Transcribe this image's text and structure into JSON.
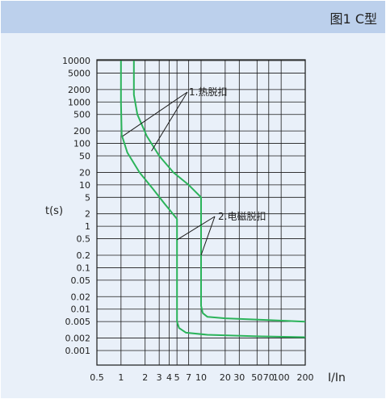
{
  "header": {
    "title": "图1 C型"
  },
  "chart_data": {
    "type": "line",
    "title": "图1 C型",
    "xlabel": "I/In",
    "ylabel": "t(s)",
    "x_scale": "log",
    "y_scale": "log",
    "xlim": [
      0.5,
      200
    ],
    "ylim": [
      0.0005,
      10000
    ],
    "grid": true,
    "x_ticks": [
      0.5,
      1,
      2,
      3,
      4,
      5,
      7,
      10,
      20,
      30,
      50,
      70,
      100,
      200
    ],
    "x_tick_labels": [
      "0.5",
      "1",
      "2",
      "3",
      "4",
      "5",
      "7",
      "10",
      "20",
      "30",
      "50",
      "70",
      "100",
      "200"
    ],
    "y_ticks": [
      0.001,
      0.002,
      0.005,
      0.01,
      0.02,
      0.05,
      0.1,
      0.2,
      0.5,
      1,
      2,
      5,
      10,
      20,
      50,
      100,
      200,
      500,
      1000,
      2000,
      5000,
      10000
    ],
    "y_tick_labels": [
      "0.001",
      "0.002",
      "0.005",
      "0.01",
      "0.02",
      "0.05",
      "0.1",
      "0.2",
      "0.5",
      "1",
      "2",
      "5",
      "10",
      "20",
      "50",
      "100",
      "200",
      "500",
      "1000",
      "2000",
      "5000",
      "10000"
    ],
    "line_color": "#2bb35a",
    "series": [
      {
        "values": [
          [
            1,
            10000
          ],
          [
            1,
            1000
          ],
          [
            1.02,
            160
          ],
          [
            1.2,
            60
          ],
          [
            1.7,
            20
          ],
          [
            2.5,
            8
          ],
          [
            3.5,
            3.5
          ],
          [
            5,
            1.5
          ],
          [
            5,
            0.005
          ],
          [
            5.3,
            0.0035
          ],
          [
            6.5,
            0.0027
          ],
          [
            12,
            0.0024
          ],
          [
            50,
            0.0022
          ],
          [
            200,
            0.0021
          ]
        ]
      },
      {
        "values": [
          [
            1.45,
            10000
          ],
          [
            1.45,
            1500
          ],
          [
            1.6,
            500
          ],
          [
            2.1,
            150
          ],
          [
            3,
            50
          ],
          [
            4.5,
            20
          ],
          [
            7,
            10
          ],
          [
            10,
            5
          ],
          [
            10,
            0.012
          ],
          [
            10.5,
            0.008
          ],
          [
            12,
            0.0065
          ],
          [
            20,
            0.006
          ],
          [
            60,
            0.0055
          ],
          [
            200,
            0.005
          ]
        ]
      }
    ],
    "annotations": [
      {
        "text": "1.热脱扣",
        "targets": [
          [
            1.05,
            150
          ],
          [
            2.4,
            65
          ]
        ]
      },
      {
        "text": "2.电磁脱扣",
        "targets": [
          [
            5,
            0.47
          ],
          [
            10,
            0.2
          ]
        ]
      }
    ]
  }
}
